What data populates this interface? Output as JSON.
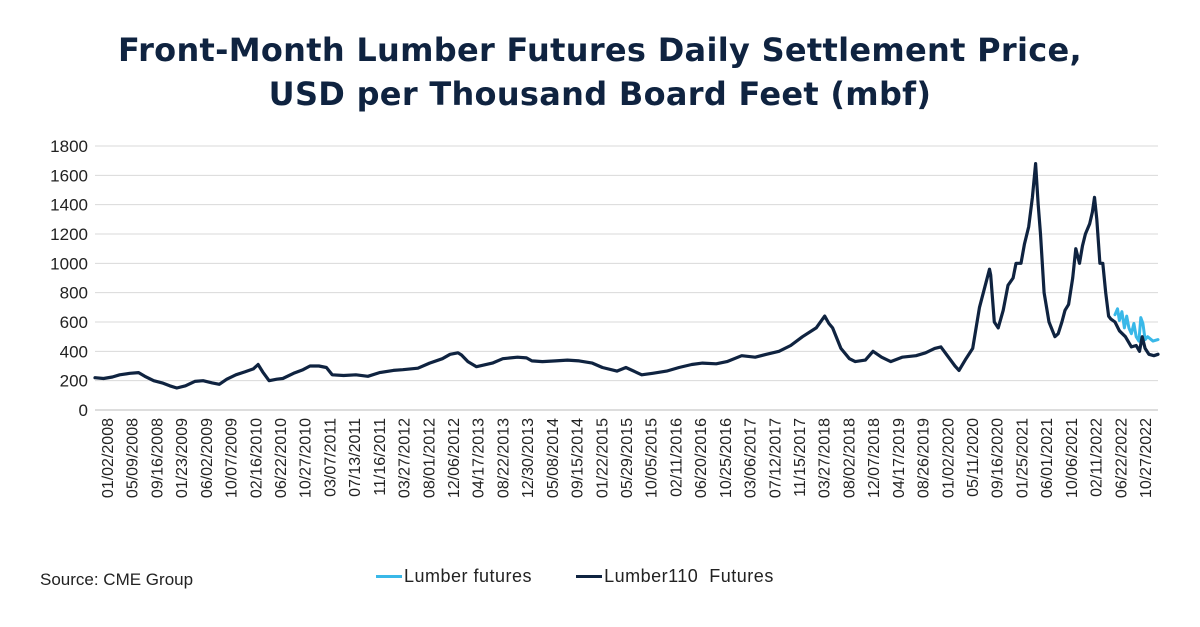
{
  "title_line1": "Front-Month Lumber Futures Daily Settlement Price,",
  "title_line2": "USD per Thousand Board Feet (mbf)",
  "source": "Source: CME Group",
  "colors": {
    "lumber_futures": "#39b8e8",
    "lumber110_futures": "#0f2340",
    "grid": "#d9d9d9",
    "text": "#222222"
  },
  "chart_data": {
    "type": "line",
    "title": "Front-Month Lumber Futures Daily Settlement Price, USD per Thousand Board Feet (mbf)",
    "xlabel": "",
    "ylabel": "",
    "ylim": [
      0,
      1800
    ],
    "y_ticks": [
      0,
      200,
      400,
      600,
      800,
      1000,
      1200,
      1400,
      1600,
      1800
    ],
    "x_range": [
      "2008-01-02",
      "2023-01-31"
    ],
    "grid": "horizontal",
    "legend_position": "bottom-center",
    "x_tick_labels": [
      "01/02/2008",
      "05/09/2008",
      "09/16/2008",
      "01/23/2009",
      "06/02/2009",
      "10/07/2009",
      "02/16/2010",
      "06/22/2010",
      "10/27/2010",
      "03/07/2011",
      "07/13/2011",
      "11/16/2011",
      "03/27/2012",
      "08/01/2012",
      "12/06/2012",
      "04/17/2013",
      "08/22/2013",
      "12/30/2013",
      "05/08/2014",
      "09/15/2014",
      "01/22/2015",
      "05/29/2015",
      "10/05/2015",
      "02/11/2016",
      "06/20/2016",
      "10/25/2016",
      "03/06/2017",
      "07/12/2017",
      "11/15/2017",
      "03/27/2018",
      "08/02/2018",
      "12/07/2018",
      "04/17/2019",
      "08/26/2019",
      "01/02/2020",
      "05/11/2020",
      "09/16/2020",
      "01/25/2021",
      "06/01/2021",
      "10/06/2021",
      "02/11/2022",
      "06/22/2022",
      "10/27/2022"
    ],
    "series": [
      {
        "name": "Lumber futures",
        "points": [
          [
            "2022-06-22",
            650
          ],
          [
            "2022-07-05",
            690
          ],
          [
            "2022-07-15",
            610
          ],
          [
            "2022-07-28",
            670
          ],
          [
            "2022-08-10",
            560
          ],
          [
            "2022-08-22",
            640
          ],
          [
            "2022-09-02",
            560
          ],
          [
            "2022-09-15",
            520
          ],
          [
            "2022-09-28",
            590
          ],
          [
            "2022-10-10",
            500
          ],
          [
            "2022-10-24",
            470
          ],
          [
            "2022-11-03",
            630
          ],
          [
            "2022-11-14",
            590
          ],
          [
            "2022-11-25",
            480
          ],
          [
            "2022-12-08",
            500
          ],
          [
            "2023-01-05",
            470
          ],
          [
            "2023-01-31",
            480
          ]
        ]
      },
      {
        "name": "Lumber110  Futures",
        "points": [
          [
            "2008-01-02",
            220
          ],
          [
            "2008-02-15",
            215
          ],
          [
            "2008-04-01",
            225
          ],
          [
            "2008-05-09",
            240
          ],
          [
            "2008-07-01",
            250
          ],
          [
            "2008-08-15",
            255
          ],
          [
            "2008-09-16",
            230
          ],
          [
            "2008-11-01",
            200
          ],
          [
            "2008-12-15",
            185
          ],
          [
            "2009-01-23",
            165
          ],
          [
            "2009-03-01",
            150
          ],
          [
            "2009-04-15",
            165
          ],
          [
            "2009-06-02",
            195
          ],
          [
            "2009-07-15",
            200
          ],
          [
            "2009-09-01",
            185
          ],
          [
            "2009-10-07",
            175
          ],
          [
            "2009-11-15",
            210
          ],
          [
            "2010-01-01",
            240
          ],
          [
            "2010-02-16",
            260
          ],
          [
            "2010-04-01",
            280
          ],
          [
            "2010-04-26",
            310
          ],
          [
            "2010-05-20",
            260
          ],
          [
            "2010-06-22",
            200
          ],
          [
            "2010-08-01",
            210
          ],
          [
            "2010-09-01",
            215
          ],
          [
            "2010-10-27",
            250
          ],
          [
            "2010-12-15",
            275
          ],
          [
            "2011-01-20",
            300
          ],
          [
            "2011-03-07",
            300
          ],
          [
            "2011-04-15",
            290
          ],
          [
            "2011-05-15",
            240
          ],
          [
            "2011-07-13",
            235
          ],
          [
            "2011-09-15",
            240
          ],
          [
            "2011-11-16",
            230
          ],
          [
            "2012-01-15",
            255
          ],
          [
            "2012-03-27",
            270
          ],
          [
            "2012-05-15",
            275
          ],
          [
            "2012-08-01",
            285
          ],
          [
            "2012-10-01",
            320
          ],
          [
            "2012-12-06",
            350
          ],
          [
            "2013-01-15",
            380
          ],
          [
            "2013-02-25",
            390
          ],
          [
            "2013-03-15",
            375
          ],
          [
            "2013-04-17",
            330
          ],
          [
            "2013-06-01",
            295
          ],
          [
            "2013-08-22",
            320
          ],
          [
            "2013-10-15",
            350
          ],
          [
            "2013-12-30",
            360
          ],
          [
            "2014-02-15",
            355
          ],
          [
            "2014-03-15",
            335
          ],
          [
            "2014-05-08",
            330
          ],
          [
            "2014-07-15",
            335
          ],
          [
            "2014-09-15",
            340
          ],
          [
            "2014-11-15",
            335
          ],
          [
            "2015-01-22",
            320
          ],
          [
            "2015-03-15",
            290
          ],
          [
            "2015-05-29",
            265
          ],
          [
            "2015-07-15",
            290
          ],
          [
            "2015-10-05",
            240
          ],
          [
            "2015-12-01",
            250
          ],
          [
            "2016-02-11",
            265
          ],
          [
            "2016-04-15",
            290
          ],
          [
            "2016-06-20",
            310
          ],
          [
            "2016-08-15",
            320
          ],
          [
            "2016-10-25",
            315
          ],
          [
            "2016-12-20",
            330
          ],
          [
            "2017-03-06",
            370
          ],
          [
            "2017-05-15",
            360
          ],
          [
            "2017-07-12",
            380
          ],
          [
            "2017-09-15",
            400
          ],
          [
            "2017-11-15",
            440
          ],
          [
            "2018-01-15",
            500
          ],
          [
            "2018-03-27",
            560
          ],
          [
            "2018-05-10",
            640
          ],
          [
            "2018-06-01",
            590
          ],
          [
            "2018-06-20",
            560
          ],
          [
            "2018-08-02",
            420
          ],
          [
            "2018-09-15",
            350
          ],
          [
            "2018-10-15",
            330
          ],
          [
            "2018-12-07",
            340
          ],
          [
            "2019-01-15",
            400
          ],
          [
            "2019-03-01",
            360
          ],
          [
            "2019-04-17",
            330
          ],
          [
            "2019-06-15",
            360
          ],
          [
            "2019-08-26",
            370
          ],
          [
            "2019-10-15",
            390
          ],
          [
            "2019-12-01",
            420
          ],
          [
            "2020-01-02",
            430
          ],
          [
            "2020-03-15",
            300
          ],
          [
            "2020-04-05",
            270
          ],
          [
            "2020-05-11",
            350
          ],
          [
            "2020-06-15",
            420
          ],
          [
            "2020-07-20",
            700
          ],
          [
            "2020-09-10",
            960
          ],
          [
            "2020-09-16",
            920
          ],
          [
            "2020-10-05",
            600
          ],
          [
            "2020-10-25",
            560
          ],
          [
            "2020-11-20",
            680
          ],
          [
            "2020-12-15",
            850
          ],
          [
            "2021-01-10",
            900
          ],
          [
            "2021-01-25",
            1000
          ],
          [
            "2021-02-20",
            1000
          ],
          [
            "2021-03-10",
            1130
          ],
          [
            "2021-04-01",
            1250
          ],
          [
            "2021-04-20",
            1450
          ],
          [
            "2021-05-07",
            1680
          ],
          [
            "2021-05-20",
            1400
          ],
          [
            "2021-06-01",
            1200
          ],
          [
            "2021-06-20",
            800
          ],
          [
            "2021-07-15",
            600
          ],
          [
            "2021-08-15",
            500
          ],
          [
            "2021-09-01",
            520
          ],
          [
            "2021-09-20",
            600
          ],
          [
            "2021-10-06",
            680
          ],
          [
            "2021-10-25",
            720
          ],
          [
            "2021-11-15",
            900
          ],
          [
            "2021-12-01",
            1100
          ],
          [
            "2021-12-20",
            1000
          ],
          [
            "2022-01-05",
            1120
          ],
          [
            "2022-01-20",
            1200
          ],
          [
            "2022-02-11",
            1270
          ],
          [
            "2022-02-25",
            1350
          ],
          [
            "2022-03-08",
            1450
          ],
          [
            "2022-03-20",
            1300
          ],
          [
            "2022-04-05",
            1000
          ],
          [
            "2022-04-20",
            1000
          ],
          [
            "2022-05-05",
            800
          ],
          [
            "2022-05-20",
            640
          ],
          [
            "2022-06-01",
            620
          ],
          [
            "2022-06-22",
            600
          ],
          [
            "2022-07-15",
            540
          ],
          [
            "2022-08-15",
            500
          ],
          [
            "2022-09-15",
            430
          ],
          [
            "2022-10-10",
            440
          ],
          [
            "2022-10-27",
            400
          ],
          [
            "2022-11-10",
            500
          ],
          [
            "2022-11-25",
            420
          ],
          [
            "2022-12-15",
            380
          ],
          [
            "2023-01-10",
            370
          ],
          [
            "2023-01-31",
            380
          ]
        ]
      }
    ]
  }
}
